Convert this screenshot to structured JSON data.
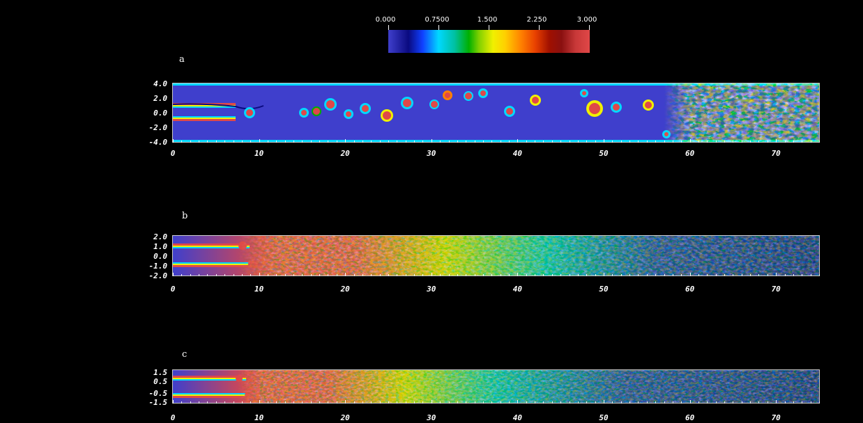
{
  "colorbar": {
    "labels": [
      "0.000",
      "0.7500",
      "1.500",
      "2.250",
      "3.000"
    ]
  },
  "panels": [
    {
      "letter": "a",
      "y_labels": [
        "4.0",
        "2.0",
        "0.0",
        "-2.0",
        "-4.0"
      ],
      "x_labels": [
        "0",
        "10",
        "20",
        "30",
        "40",
        "50",
        "60",
        "70"
      ]
    },
    {
      "letter": "b",
      "y_labels": [
        "2.0",
        "1.0",
        "0.0",
        "-1.0",
        "-2.0"
      ],
      "x_labels": [
        "0",
        "10",
        "20",
        "30",
        "40",
        "50",
        "60",
        "70"
      ]
    },
    {
      "letter": "c",
      "y_labels": [
        "1.5",
        "0.5",
        "-0.5",
        "-1.5"
      ],
      "x_labels": [
        "0",
        "10",
        "20",
        "30",
        "40",
        "50",
        "60",
        "70"
      ]
    }
  ],
  "colors": {
    "background": "#000000",
    "low": "#3f3fcc",
    "deep": "#0a0a80",
    "cyan": "#00d8ff",
    "green": "#00b000",
    "yellow": "#f0f000",
    "orange": "#ff8000",
    "high": "#e04848"
  }
}
